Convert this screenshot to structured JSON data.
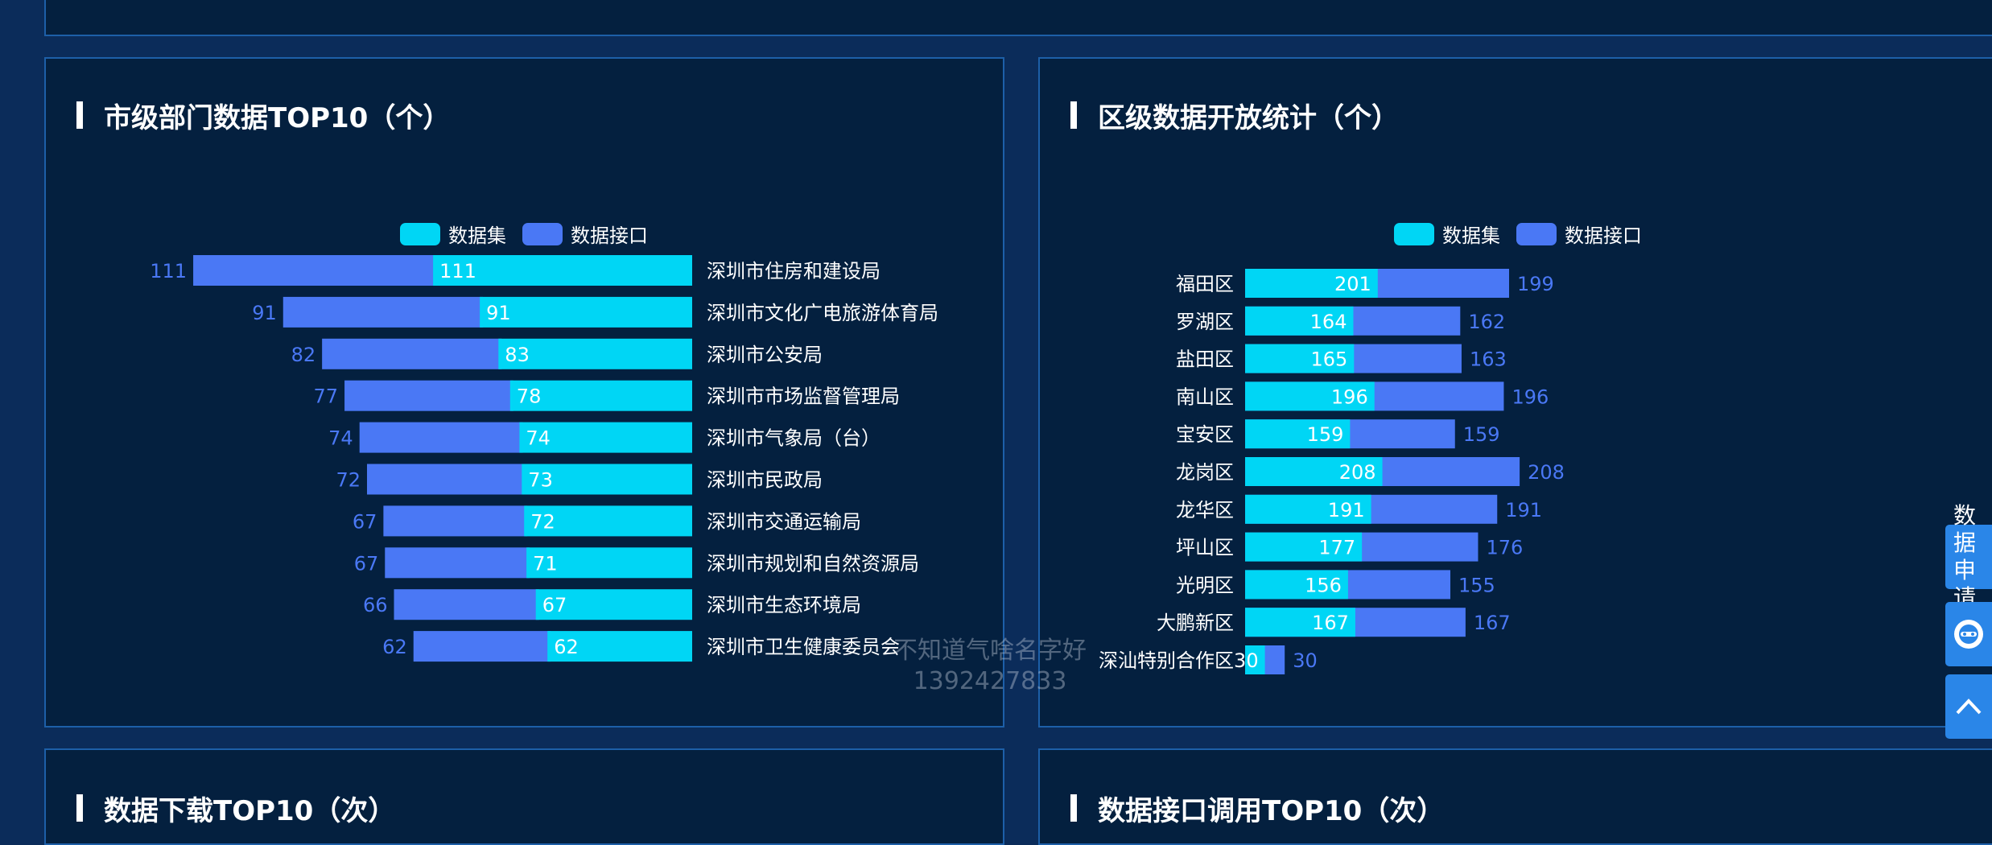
{
  "panels": {
    "city_title": "市级部门数据TOP10（个）",
    "district_title": "区级数据开放统计（个）",
    "bottom_left_title": "数据下载TOP10（次）",
    "bottom_right_title": "数据接口调用TOP10（次）"
  },
  "colors": {
    "dataset": "#00d6f5",
    "api": "#4a78f5",
    "panel_bg": "#04203f",
    "panel_border": "#1d5fa8",
    "page_bg": "#0b2c5a"
  },
  "chart_data": [
    {
      "type": "bar",
      "orientation": "horizontal",
      "title": "市级部门数据TOP10（个）",
      "legend": [
        "数据集",
        "数据接口"
      ],
      "categories": [
        "深圳市住房和建设局",
        "深圳市文化广电旅游体育局",
        "深圳市公安局",
        "深圳市市场监督管理局",
        "深圳市气象局（台）",
        "深圳市民政局",
        "深圳市交通运输局",
        "深圳市规划和自然资源局",
        "深圳市生态环境局",
        "深圳市卫生健康委员会"
      ],
      "series": [
        {
          "name": "数据集",
          "values": [
            111,
            91,
            83,
            78,
            74,
            73,
            72,
            71,
            67,
            62
          ]
        },
        {
          "name": "数据接口",
          "values": [
            111,
            91,
            82,
            77,
            74,
            72,
            67,
            67,
            66,
            62
          ]
        }
      ]
    },
    {
      "type": "bar",
      "orientation": "horizontal",
      "stacked": true,
      "title": "区级数据开放统计（个）",
      "legend": [
        "数据集",
        "数据接口"
      ],
      "categories": [
        "福田区",
        "罗湖区",
        "盐田区",
        "南山区",
        "宝安区",
        "龙岗区",
        "龙华区",
        "坪山区",
        "光明区",
        "大鹏新区",
        "深汕特别合作区"
      ],
      "series": [
        {
          "name": "数据集",
          "values": [
            201,
            164,
            165,
            196,
            159,
            208,
            191,
            177,
            156,
            167,
            30
          ]
        },
        {
          "name": "数据接口",
          "values": [
            199,
            162,
            163,
            196,
            159,
            208,
            191,
            176,
            155,
            167,
            30
          ]
        }
      ]
    }
  ],
  "side_buttons": {
    "apply_label_1": "数据",
    "apply_label_2": "申请"
  },
  "watermark": {
    "line1": "不知道气啥名字好",
    "line2": "1392427833"
  }
}
